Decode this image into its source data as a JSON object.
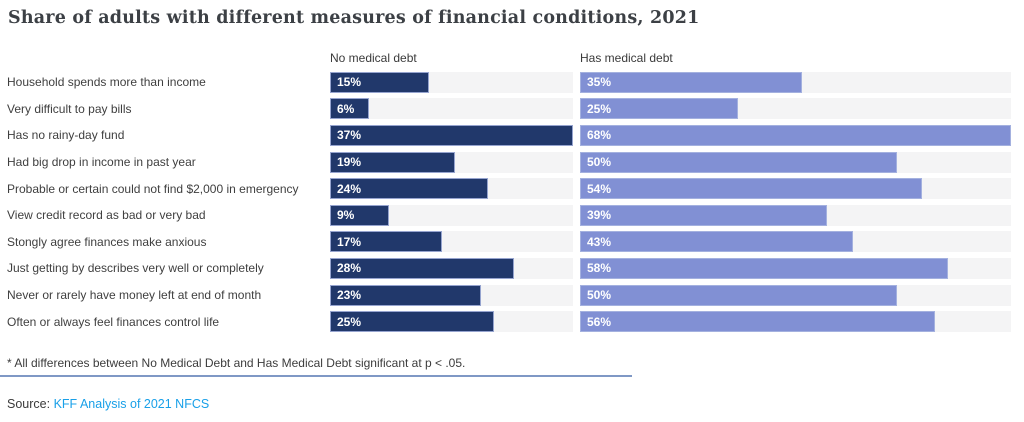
{
  "title": "Share of adults with different measures of financial conditions, 2021",
  "chart_data": {
    "type": "bar",
    "orientation": "horizontal",
    "value_suffix": "%",
    "grid": false,
    "categories": [
      "Household spends more than income",
      "Very difficult to pay bills",
      "Has no rainy-day fund",
      "Had big drop in income in past year",
      "Probable or certain could not find $2,000 in emergency",
      "View credit record as bad or very bad",
      "Stongly agree finances make anxious",
      "Just getting by describes very well or completely",
      "Never or rarely have money left at end of month",
      "Often or always feel finances control life"
    ],
    "series": [
      {
        "name": "No medical debt",
        "values": [
          15,
          6,
          37,
          19,
          24,
          9,
          17,
          28,
          23,
          25
        ],
        "color": "#21386b",
        "scale_max": 37
      },
      {
        "name": "Has medical debt",
        "values": [
          35,
          25,
          68,
          50,
          54,
          39,
          43,
          58,
          50,
          56
        ],
        "color": "#8190d4",
        "scale_max": 68
      }
    ]
  },
  "footnote": "* All differences between No Medical Debt and Has Medical Debt significant at p < .05.",
  "source": {
    "label": "Source:",
    "link_text": "KFF Analysis of 2021 NFCS"
  },
  "colors": {
    "dark_bar": "#21386b",
    "light_bar": "#8190d4",
    "track": "#f4f4f5",
    "divider": "#7f98c5",
    "link": "#19a0e8",
    "title_text": "#3c4045",
    "label_text": "#3f3f3f",
    "bar_value_text": "#ffffff"
  }
}
